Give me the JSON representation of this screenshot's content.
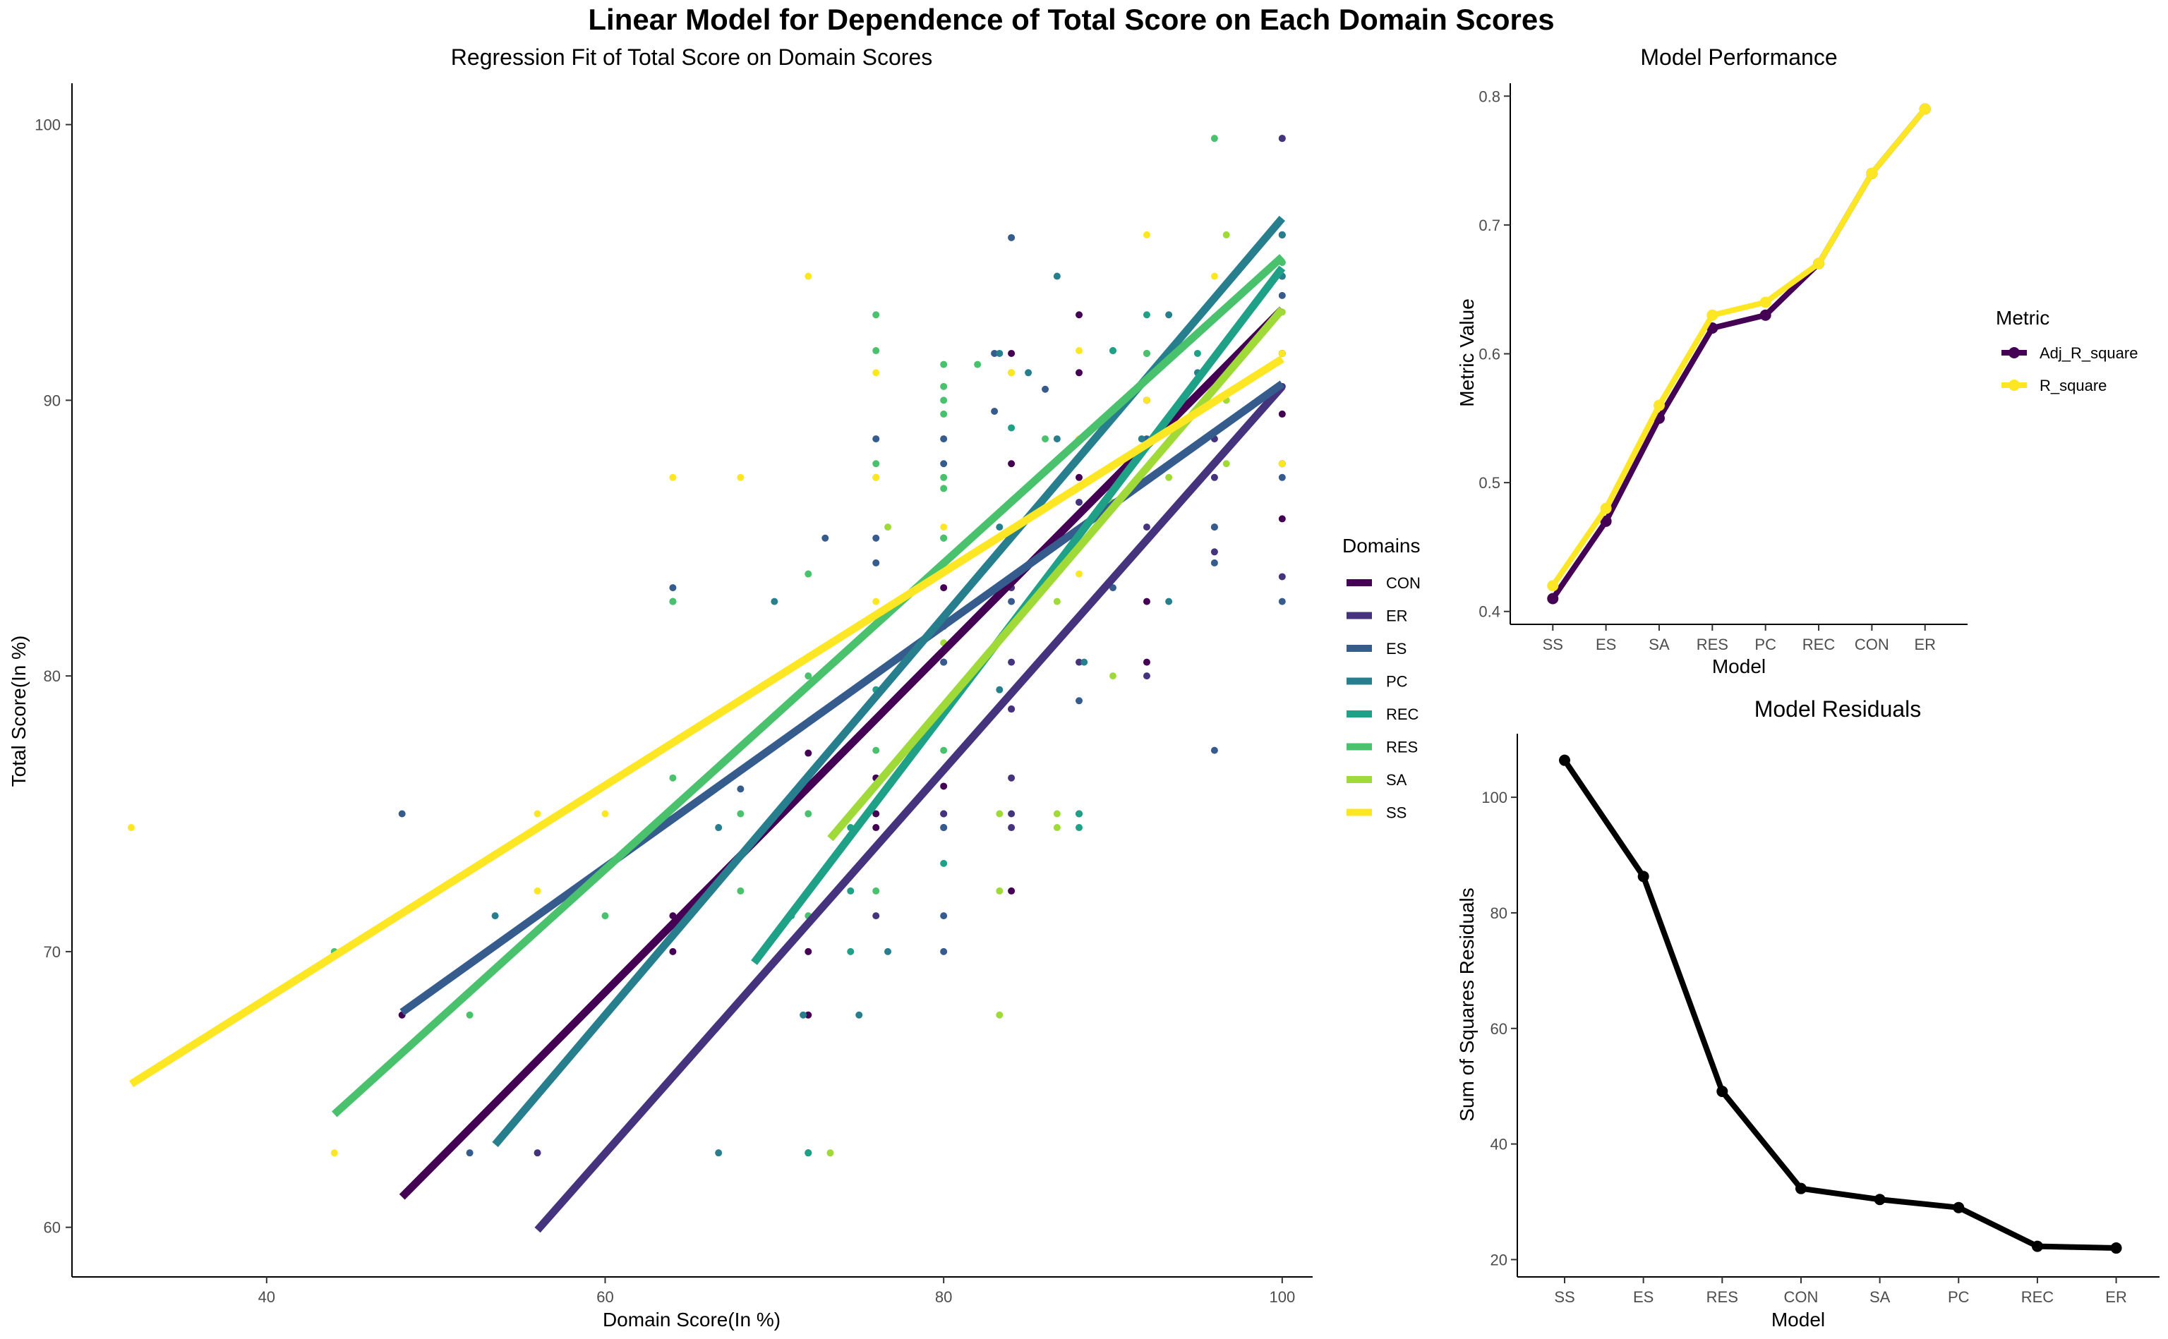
{
  "figure_title": "Linear Model for Dependence of Total Score on Each Domain Scores",
  "chart_data": [
    {
      "id": "regression",
      "type": "scatter",
      "title": "Regression Fit of Total Score on Domain Scores",
      "xlabel": "Domain Score(In %)",
      "ylabel": "Total Score(In %)",
      "xlim": [
        28.5,
        101.8
      ],
      "ylim": [
        58.2,
        101.5
      ],
      "xticks": [
        40,
        60,
        80,
        100
      ],
      "yticks": [
        60,
        70,
        80,
        90,
        100
      ],
      "grid": false,
      "legend": {
        "title": "Domains",
        "position": "right"
      },
      "series": [
        {
          "name": "CON",
          "color": "#440154",
          "fit": [
            [
              48,
              61.1
            ],
            [
              100,
              93.3
            ]
          ],
          "points": [
            [
              48,
              67.7
            ],
            [
              64,
              71.3
            ],
            [
              64,
              70.0
            ],
            [
              72,
              62.7
            ],
            [
              72,
              67.7
            ],
            [
              72,
              70.0
            ],
            [
              72,
              77.2
            ],
            [
              76,
              74.5
            ],
            [
              76,
              75.0
            ],
            [
              76,
              76.3
            ],
            [
              80,
              75.0
            ],
            [
              80,
              76.0
            ],
            [
              80,
              80.5
            ],
            [
              80,
              83.2
            ],
            [
              84,
              87.7
            ],
            [
              84,
              91.7
            ],
            [
              84,
              72.2
            ],
            [
              84,
              78.8
            ],
            [
              88,
              75.0
            ],
            [
              88,
              87.2
            ],
            [
              88,
              91.0
            ],
            [
              88,
              93.1
            ],
            [
              92,
              80.5
            ],
            [
              92,
              82.7
            ],
            [
              92,
              90.0
            ],
            [
              96,
              93.0
            ],
            [
              100,
              99.5
            ],
            [
              100,
              96.0
            ],
            [
              100,
              94.5
            ],
            [
              100,
              91.7
            ],
            [
              100,
              89.5
            ],
            [
              100,
              85.7
            ]
          ]
        },
        {
          "name": "ER",
          "color": "#46337e",
          "fit": [
            [
              56,
              59.9
            ],
            [
              100,
              90.5
            ]
          ],
          "points": [
            [
              56,
              62.7
            ],
            [
              76,
              71.3
            ],
            [
              80,
              74.5
            ],
            [
              80,
              75.0
            ],
            [
              84,
              74.5
            ],
            [
              84,
              75.0
            ],
            [
              84,
              76.3
            ],
            [
              84,
              78.8
            ],
            [
              84,
              80.5
            ],
            [
              84,
              83.2
            ],
            [
              88,
              80.5
            ],
            [
              88,
              86.3
            ],
            [
              92,
              80.0
            ],
            [
              92,
              85.4
            ],
            [
              96,
              84.5
            ],
            [
              96,
              85.4
            ],
            [
              96,
              87.2
            ],
            [
              96,
              88.6
            ],
            [
              100,
              83.6
            ],
            [
              100,
              87.7
            ],
            [
              100,
              90.5
            ],
            [
              100,
              96.0
            ],
            [
              100,
              99.5
            ]
          ]
        },
        {
          "name": "ES",
          "color": "#365c8d",
          "fit": [
            [
              48,
              67.8
            ],
            [
              100,
              90.6
            ]
          ],
          "points": [
            [
              48,
              75.0
            ],
            [
              52,
              62.7
            ],
            [
              64,
              83.2
            ],
            [
              64,
              82.7
            ],
            [
              68,
              75.9
            ],
            [
              73,
              85.0
            ],
            [
              76,
              85.0
            ],
            [
              76,
              84.1
            ],
            [
              76,
              88.6
            ],
            [
              80,
              70.0
            ],
            [
              80,
              71.3
            ],
            [
              80,
              74.5
            ],
            [
              80,
              80.5
            ],
            [
              80,
              87.7
            ],
            [
              80,
              88.6
            ],
            [
              83,
              91.7
            ],
            [
              83,
              89.6
            ],
            [
              84,
              95.9
            ],
            [
              84,
              82.7
            ],
            [
              86,
              90.4
            ],
            [
              88,
              79.1
            ],
            [
              90,
              83.2
            ],
            [
              92,
              88.6
            ],
            [
              96,
              84.1
            ],
            [
              96,
              77.3
            ],
            [
              96,
              85.4
            ],
            [
              100,
              82.7
            ],
            [
              100,
              87.2
            ],
            [
              100,
              87.7
            ],
            [
              100,
              91.7
            ],
            [
              100,
              93.8
            ]
          ]
        },
        {
          "name": "PC",
          "color": "#277f8e",
          "fit": [
            [
              53.5,
              63.0
            ],
            [
              100,
              96.6
            ]
          ],
          "points": [
            [
              53.5,
              71.3
            ],
            [
              66.7,
              62.7
            ],
            [
              66.7,
              74.5
            ],
            [
              70,
              82.7
            ],
            [
              71.7,
              67.7
            ],
            [
              75,
              67.7
            ],
            [
              76.7,
              70.0
            ],
            [
              80,
              81.8
            ],
            [
              83.3,
              79.5
            ],
            [
              83.3,
              85.4
            ],
            [
              83.3,
              91.7
            ],
            [
              85,
              91.0
            ],
            [
              86.7,
              94.5
            ],
            [
              86.7,
              88.6
            ],
            [
              88.3,
              80.5
            ],
            [
              90,
              91.8
            ],
            [
              91.7,
              88.6
            ],
            [
              93.3,
              82.7
            ],
            [
              93.3,
              93.1
            ],
            [
              95,
              91.0
            ],
            [
              100,
              94.5
            ],
            [
              100,
              96.0
            ]
          ]
        },
        {
          "name": "REC",
          "color": "#1fa187",
          "fit": [
            [
              68.8,
              69.6
            ],
            [
              100,
              94.8
            ]
          ],
          "points": [
            [
              71,
              71.3
            ],
            [
              72,
              62.7
            ],
            [
              74.5,
              74.5
            ],
            [
              74.5,
              70.0
            ],
            [
              74.5,
              72.2
            ],
            [
              76,
              79.5
            ],
            [
              80,
              73.2
            ],
            [
              80,
              85.0
            ],
            [
              82,
              82.7
            ],
            [
              84,
              89.0
            ],
            [
              88,
              74.5
            ],
            [
              88,
              75.0
            ],
            [
              90,
              91.8
            ],
            [
              92,
              93.1
            ],
            [
              92,
              91.7
            ],
            [
              95,
              91.7
            ],
            [
              100,
              95.0
            ]
          ]
        },
        {
          "name": "RES",
          "color": "#4ac16d",
          "fit": [
            [
              44,
              64.1
            ],
            [
              100,
              95.2
            ]
          ],
          "points": [
            [
              44,
              70.0
            ],
            [
              52,
              67.7
            ],
            [
              60,
              71.3
            ],
            [
              64,
              76.3
            ],
            [
              64,
              82.7
            ],
            [
              68,
              72.2
            ],
            [
              68,
              75.0
            ],
            [
              72,
              83.7
            ],
            [
              72,
              71.3
            ],
            [
              72,
              75.0
            ],
            [
              72,
              80.0
            ],
            [
              76,
              93.1
            ],
            [
              76,
              91.8
            ],
            [
              76,
              87.7
            ],
            [
              76,
              87.2
            ],
            [
              76,
              77.3
            ],
            [
              76,
              72.2
            ],
            [
              80,
              91.3
            ],
            [
              80,
              90.5
            ],
            [
              80,
              90.0
            ],
            [
              80,
              89.5
            ],
            [
              80,
              87.2
            ],
            [
              80,
              86.8
            ],
            [
              80,
              85.0
            ],
            [
              80,
              77.3
            ],
            [
              82,
              91.3
            ],
            [
              84,
              91.0
            ],
            [
              86,
              88.6
            ],
            [
              92,
              91.7
            ],
            [
              96,
              99.5
            ],
            [
              100,
              95.0
            ]
          ]
        },
        {
          "name": "SA",
          "color": "#a0da39",
          "fit": [
            [
              73.3,
              74.1
            ],
            [
              100,
              93.3
            ]
          ],
          "points": [
            [
              73.3,
              62.7
            ],
            [
              76.7,
              85.4
            ],
            [
              80,
              81.2
            ],
            [
              83.3,
              67.7
            ],
            [
              83.3,
              72.2
            ],
            [
              83.3,
              75.0
            ],
            [
              86.7,
              74.5
            ],
            [
              86.7,
              75.0
            ],
            [
              86.7,
              82.7
            ],
            [
              90,
              80.0
            ],
            [
              90,
              86.3
            ],
            [
              93.3,
              87.2
            ],
            [
              96.7,
              87.7
            ],
            [
              96.7,
              90.0
            ],
            [
              96.7,
              96.0
            ],
            [
              100,
              93.2
            ]
          ]
        },
        {
          "name": "SS",
          "color": "#fde725",
          "fit": [
            [
              32,
              65.2
            ],
            [
              100,
              91.5
            ]
          ],
          "points": [
            [
              32,
              74.5
            ],
            [
              44,
              62.7
            ],
            [
              56,
              72.2
            ],
            [
              56,
              75.0
            ],
            [
              60,
              75.0
            ],
            [
              64,
              87.2
            ],
            [
              68,
              87.2
            ],
            [
              72,
              94.5
            ],
            [
              76,
              91.0
            ],
            [
              76,
              87.2
            ],
            [
              76,
              82.7
            ],
            [
              80,
              85.4
            ],
            [
              84,
              91.0
            ],
            [
              88,
              91.8
            ],
            [
              88,
              88.6
            ],
            [
              88,
              83.7
            ],
            [
              92,
              96.0
            ],
            [
              92,
              90.0
            ],
            [
              96,
              94.5
            ],
            [
              100,
              91.7
            ],
            [
              100,
              87.7
            ]
          ]
        }
      ]
    },
    {
      "id": "performance",
      "type": "line",
      "title": "Model Performance",
      "xlabel": "Model",
      "ylabel": "Metric Value",
      "categories": [
        "SS",
        "ES",
        "SA",
        "RES",
        "PC",
        "REC",
        "CON",
        "ER"
      ],
      "ylim": [
        0.39,
        0.81
      ],
      "yticks": [
        0.4,
        0.5,
        0.6,
        0.7,
        0.8
      ],
      "grid": false,
      "legend": {
        "title": "Metric",
        "position": "right"
      },
      "series": [
        {
          "name": "Adj_R_square",
          "color": "#440154",
          "values": [
            0.41,
            0.47,
            0.55,
            0.62,
            0.63,
            0.67,
            0.74,
            0.79
          ]
        },
        {
          "name": "R_square",
          "color": "#fde725",
          "values": [
            0.42,
            0.48,
            0.56,
            0.63,
            0.64,
            0.67,
            0.74,
            0.79
          ]
        }
      ]
    },
    {
      "id": "residuals",
      "type": "line",
      "title": "Model Residuals",
      "xlabel": "Model",
      "ylabel": "Sum of Squares Residuals",
      "categories": [
        "SS",
        "ES",
        "RES",
        "CON",
        "SA",
        "PC",
        "REC",
        "ER"
      ],
      "ylim": [
        17,
        111
      ],
      "yticks": [
        20,
        40,
        60,
        80,
        100
      ],
      "grid": false,
      "series": [
        {
          "color": "#000000",
          "values": [
            106.4,
            86.3,
            49.1,
            32.3,
            30.4,
            29.0,
            22.3,
            22.0
          ]
        }
      ]
    }
  ]
}
